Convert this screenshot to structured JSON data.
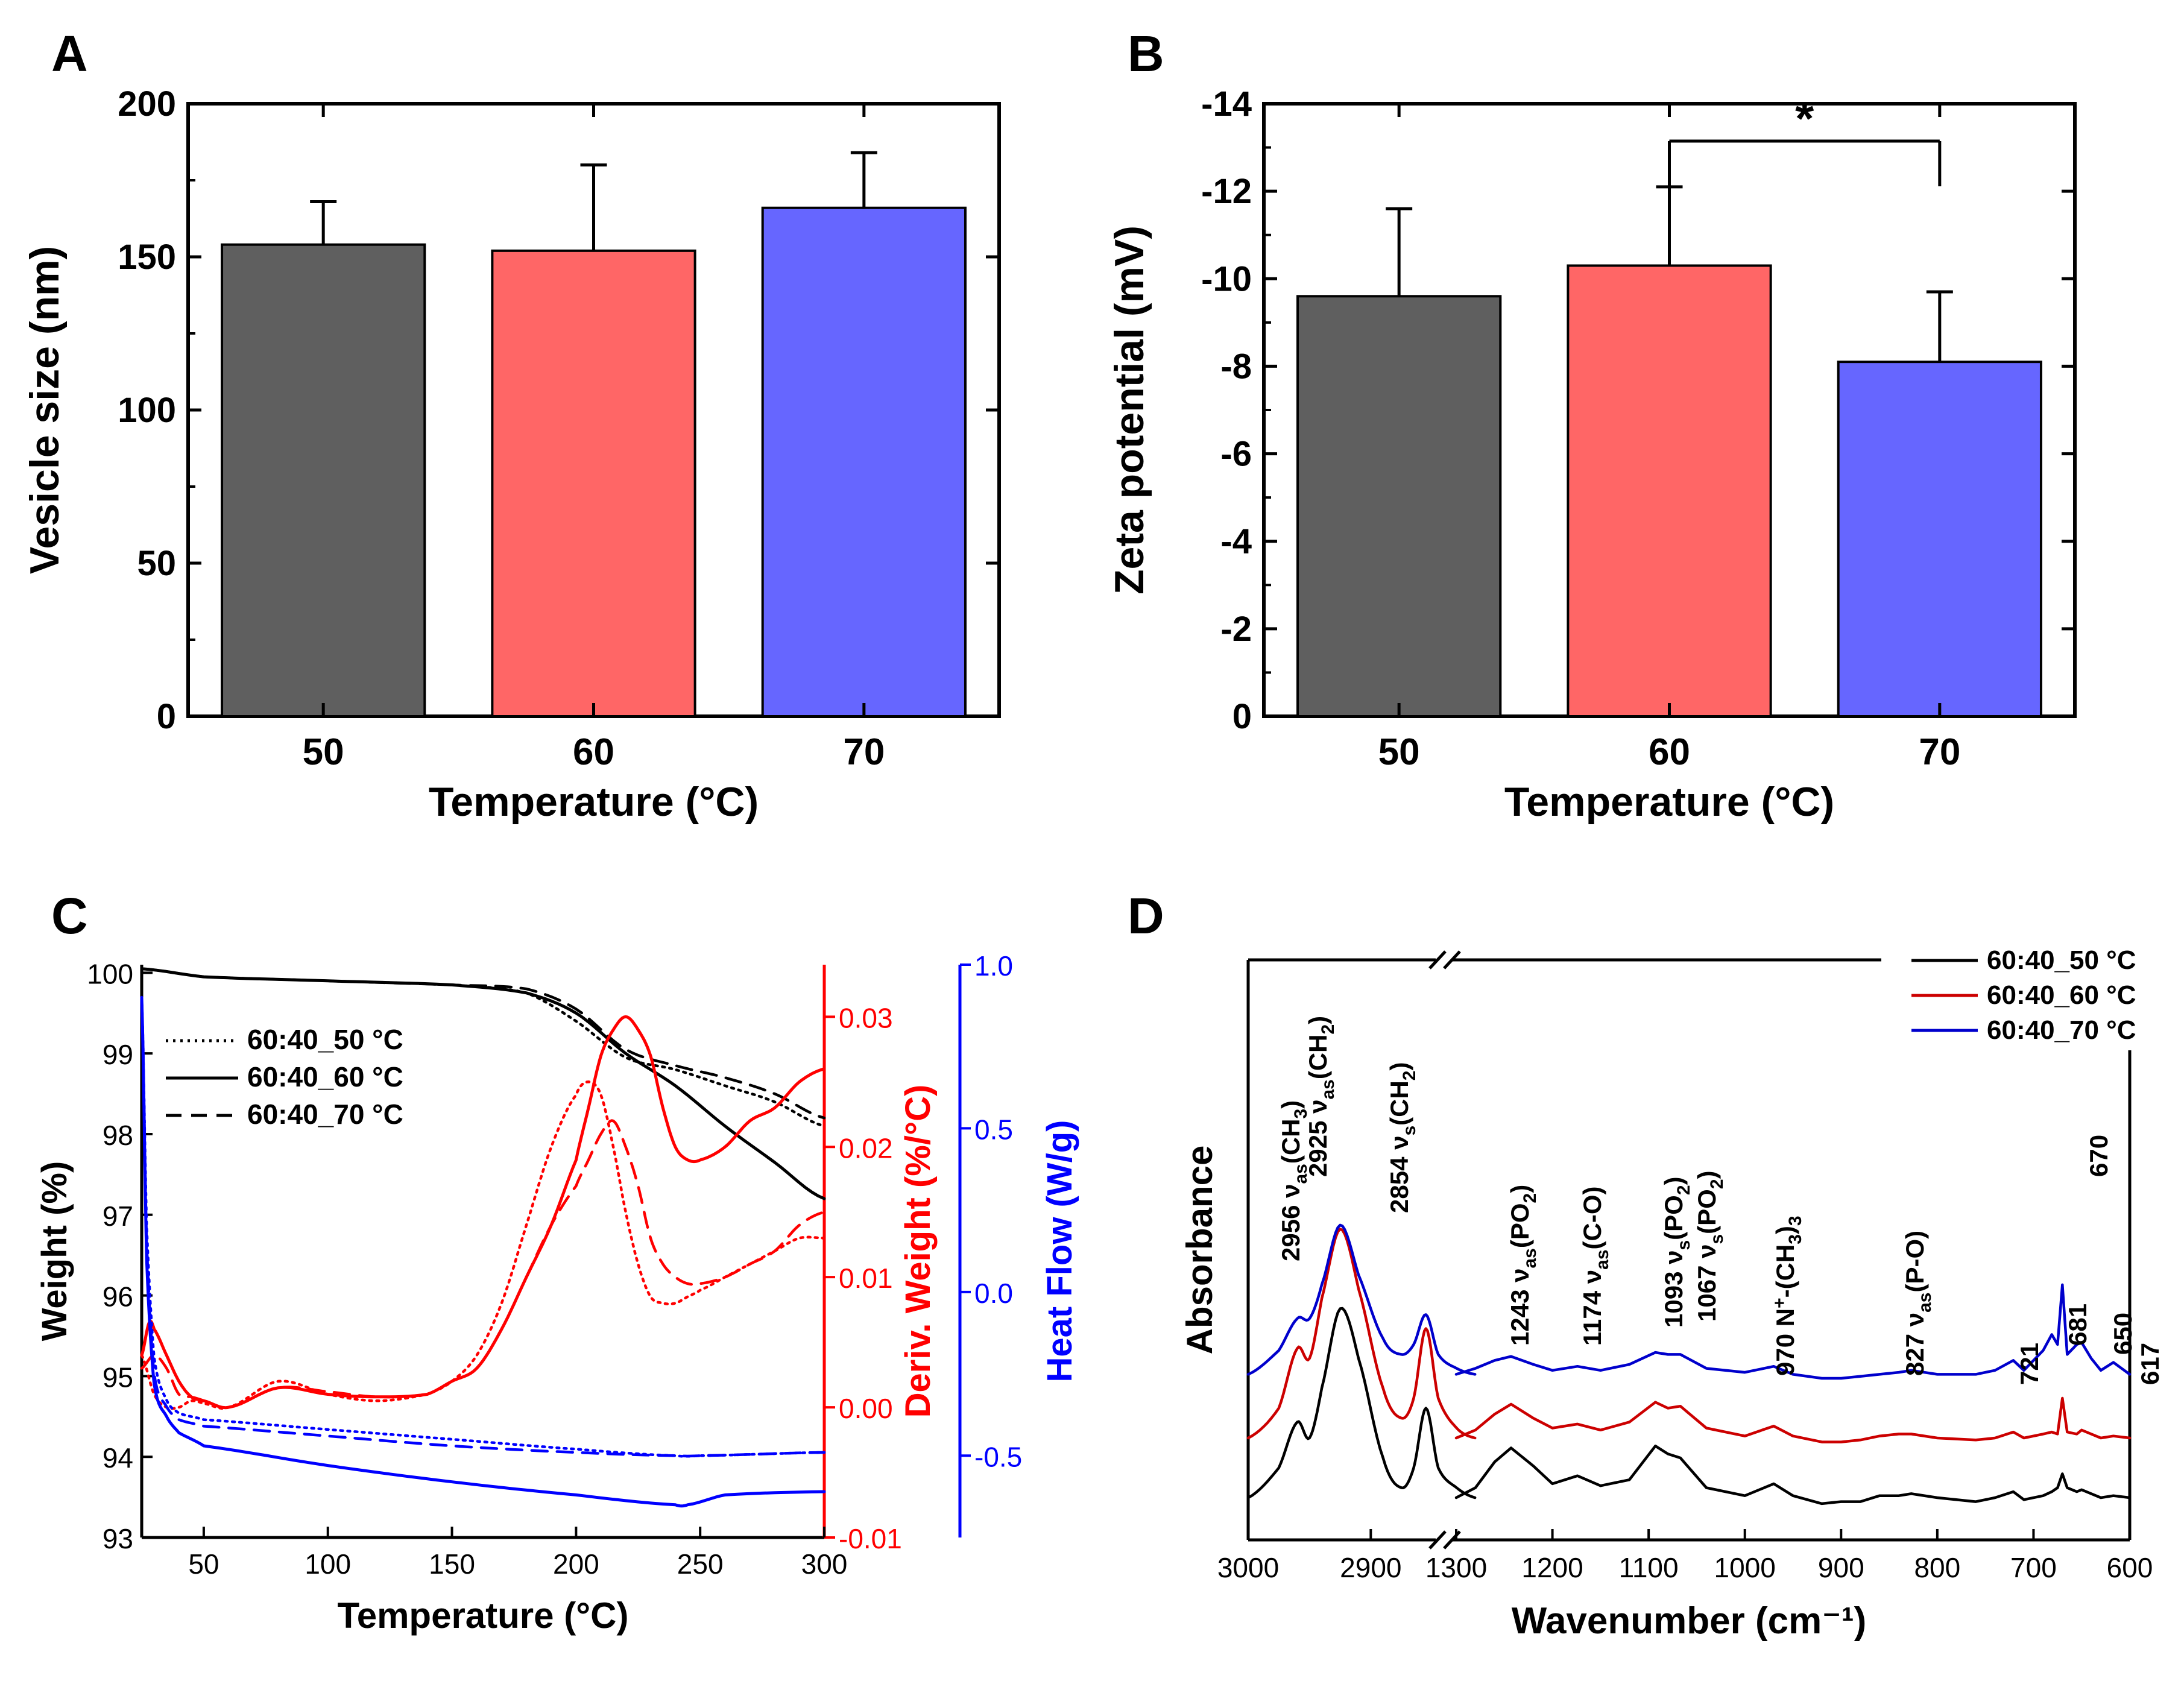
{
  "chart_data": [
    {
      "panel_label": "A",
      "type": "bar",
      "categories": [
        "50",
        "60",
        "70"
      ],
      "values": [
        154,
        152,
        166
      ],
      "errors": [
        14,
        28,
        18
      ],
      "colors": [
        "#5f5f5f",
        "#ff6666",
        "#6666ff"
      ],
      "xlabel": "Temperature (°C)",
      "ylabel": "Vesicle size (nm)",
      "ylim": [
        0,
        200
      ],
      "yticks": [
        "0",
        "50",
        "100",
        "150",
        "200"
      ]
    },
    {
      "panel_label": "B",
      "type": "bar",
      "categories": [
        "50",
        "60",
        "70"
      ],
      "values": [
        -9.6,
        -10.3,
        -8.1
      ],
      "errors": [
        2.0,
        1.8,
        1.6
      ],
      "colors": [
        "#5f5f5f",
        "#ff6666",
        "#6666ff"
      ],
      "xlabel": "Temperature (°C)",
      "ylabel": "Zeta potential (mV)",
      "ylim": [
        0,
        -14
      ],
      "yticks": [
        "0",
        "-2",
        "-4",
        "-6",
        "-8",
        "-10",
        "-12",
        "-14"
      ],
      "significance": {
        "between": [
          "60",
          "70"
        ],
        "label": "*"
      }
    },
    {
      "panel_label": "C",
      "type": "line",
      "xlabel": "Temperature (°C)",
      "xlim": [
        25,
        300
      ],
      "xticks": [
        "50",
        "100",
        "150",
        "200",
        "250",
        "300"
      ],
      "axes": {
        "left": {
          "label": "Weight (%)",
          "range": [
            93,
            100.1
          ],
          "ticks": [
            "93",
            "94",
            "95",
            "96",
            "97",
            "98",
            "99",
            "100"
          ],
          "color": "#000000"
        },
        "right1": {
          "label": "Deriv. Weight (%/°C)",
          "range": [
            -0.01,
            0.034
          ],
          "ticks": [
            "-0.01",
            "0.00",
            "0.01",
            "0.02",
            "0.03"
          ],
          "color": "#ff0000"
        },
        "right2": {
          "label": "Heat Flow (W/g)",
          "range": [
            -0.75,
            1.0
          ],
          "ticks": [
            "-0.5",
            "0.0",
            "0.5",
            "1.0"
          ],
          "color": "#0000ff"
        }
      },
      "legend": [
        "60:40_50 °C",
        "60:40_60 °C",
        "60:40_70 °C"
      ],
      "series": [
        {
          "name": "60:40_50 °C",
          "axis": "left",
          "style": "dotted",
          "color": "#000000",
          "x": [
            25,
            50,
            100,
            150,
            180,
            200,
            220,
            240,
            260,
            280,
            300
          ],
          "y": [
            100.05,
            99.95,
            99.9,
            99.85,
            99.75,
            99.4,
            98.95,
            98.8,
            98.6,
            98.4,
            98.1
          ]
        },
        {
          "name": "60:40_60 °C",
          "axis": "left",
          "style": "solid",
          "color": "#000000",
          "x": [
            25,
            50,
            100,
            150,
            180,
            200,
            220,
            240,
            260,
            280,
            300
          ],
          "y": [
            100.05,
            99.95,
            99.9,
            99.85,
            99.75,
            99.5,
            99.0,
            98.6,
            98.1,
            97.65,
            97.2
          ]
        },
        {
          "name": "60:40_70 °C",
          "axis": "left",
          "style": "dashed",
          "color": "#000000",
          "x": [
            25,
            50,
            100,
            150,
            180,
            200,
            220,
            240,
            260,
            280,
            300
          ],
          "y": [
            100.05,
            99.95,
            99.9,
            99.85,
            99.8,
            99.55,
            99.05,
            98.85,
            98.7,
            98.5,
            98.2
          ]
        },
        {
          "name": "60:40_50 °C",
          "axis": "right1",
          "style": "dotted",
          "color": "#ff0000",
          "x": [
            25,
            30,
            35,
            40,
            45,
            50,
            60,
            80,
            100,
            120,
            140,
            150,
            160,
            170,
            180,
            190,
            200,
            205,
            210,
            215,
            220,
            225,
            230,
            235,
            240,
            245,
            250,
            260,
            270,
            280,
            290,
            300
          ],
          "y": [
            0.004,
            0.001,
            0.0,
            0.0,
            0.0005,
            0.0003,
            0.0,
            0.002,
            0.001,
            0.0005,
            0.001,
            0.002,
            0.004,
            0.008,
            0.014,
            0.02,
            0.024,
            0.025,
            0.024,
            0.02,
            0.015,
            0.011,
            0.0085,
            0.008,
            0.008,
            0.0085,
            0.009,
            0.01,
            0.011,
            0.012,
            0.013,
            0.013
          ]
        },
        {
          "name": "60:40_60 °C",
          "axis": "right1",
          "style": "solid",
          "color": "#ff0000",
          "x": [
            25,
            28,
            30,
            35,
            40,
            45,
            50,
            60,
            80,
            100,
            120,
            140,
            150,
            160,
            170,
            180,
            190,
            200,
            205,
            210,
            215,
            220,
            225,
            230,
            235,
            240,
            245,
            250,
            260,
            270,
            280,
            290,
            300
          ],
          "y": [
            0.004,
            0.0065,
            0.006,
            0.004,
            0.002,
            0.0008,
            0.0005,
            0.0,
            0.0015,
            0.001,
            0.0008,
            0.001,
            0.002,
            0.003,
            0.006,
            0.01,
            0.014,
            0.019,
            0.023,
            0.027,
            0.029,
            0.03,
            0.029,
            0.027,
            0.023,
            0.02,
            0.019,
            0.019,
            0.02,
            0.022,
            0.023,
            0.025,
            0.026
          ]
        },
        {
          "name": "60:40_70 °C",
          "axis": "right1",
          "style": "dashed",
          "color": "#ff0000",
          "x": [
            25,
            30,
            35,
            40,
            45,
            50,
            60,
            80,
            100,
            120,
            140,
            150,
            160,
            170,
            180,
            190,
            200,
            205,
            210,
            215,
            220,
            225,
            230,
            235,
            240,
            245,
            250,
            260,
            270,
            280,
            290,
            300
          ],
          "y": [
            0.003,
            0.004,
            0.003,
            0.001,
            0.0008,
            0.0005,
            0.0,
            0.0015,
            0.0012,
            0.0008,
            0.001,
            0.002,
            0.003,
            0.006,
            0.01,
            0.014,
            0.017,
            0.019,
            0.021,
            0.022,
            0.02,
            0.017,
            0.013,
            0.011,
            0.01,
            0.0095,
            0.0095,
            0.01,
            0.011,
            0.012,
            0.014,
            0.015
          ]
        },
        {
          "name": "60:40_50 °C",
          "axis": "right2",
          "style": "dotted",
          "color": "#0000ff",
          "x": [
            25,
            27,
            30,
            35,
            40,
            50,
            100,
            150,
            200,
            240,
            250,
            300
          ],
          "y": [
            0.9,
            0.2,
            -0.2,
            -0.33,
            -0.37,
            -0.39,
            -0.42,
            -0.45,
            -0.48,
            -0.5,
            -0.5,
            -0.49
          ]
        },
        {
          "name": "60:40_60 °C",
          "axis": "right2",
          "style": "solid",
          "color": "#0000ff",
          "x": [
            25,
            27,
            30,
            35,
            40,
            50,
            100,
            150,
            200,
            240,
            245,
            260,
            300
          ],
          "y": [
            0.9,
            0.1,
            -0.28,
            -0.38,
            -0.43,
            -0.47,
            -0.53,
            -0.58,
            -0.62,
            -0.65,
            -0.65,
            -0.62,
            -0.61
          ]
        },
        {
          "name": "60:40_70 °C",
          "axis": "right2",
          "style": "dashed",
          "color": "#0000ff",
          "x": [
            25,
            27,
            30,
            35,
            40,
            50,
            100,
            150,
            200,
            240,
            250,
            300
          ],
          "y": [
            0.9,
            0.15,
            -0.25,
            -0.35,
            -0.39,
            -0.41,
            -0.44,
            -0.47,
            -0.49,
            -0.5,
            -0.5,
            -0.49
          ]
        }
      ]
    },
    {
      "panel_label": "D",
      "type": "line",
      "xlabel": "Wavenumber (cm⁻¹)",
      "ylabel": "Absorbance",
      "x_break": {
        "left_range": [
          3000,
          2850
        ],
        "right_range": [
          1300,
          600
        ]
      },
      "xticks": [
        "3000",
        "2900",
        "1300",
        "1200",
        "1100",
        "1000",
        "900",
        "800",
        "700",
        "600"
      ],
      "legend": [
        "60:40_50 °C",
        "60:40_60 °C",
        "60:40_70 °C"
      ],
      "series": [
        {
          "name": "60:40_50 °C",
          "color": "#000000",
          "offset": 0,
          "x_high": [
            3000,
            2975,
            2960,
            2950,
            2940,
            2925,
            2910,
            2890,
            2875,
            2865,
            2855,
            2845,
            2830,
            2815
          ],
          "y_high": [
            0.0,
            0.15,
            0.38,
            0.3,
            0.55,
            0.95,
            0.7,
            0.2,
            0.05,
            0.15,
            0.45,
            0.15,
            0.05,
            0.0
          ],
          "x_low": [
            1300,
            1280,
            1260,
            1243,
            1220,
            1200,
            1174,
            1150,
            1120,
            1093,
            1080,
            1067,
            1040,
            1000,
            970,
            950,
            920,
            900,
            880,
            860,
            840,
            827,
            800,
            760,
            740,
            721,
            710,
            690,
            681,
            675,
            670,
            665,
            655,
            650,
            640,
            630,
            617,
            600
          ],
          "y_low": [
            0.0,
            0.05,
            0.18,
            0.25,
            0.16,
            0.07,
            0.11,
            0.06,
            0.09,
            0.26,
            0.22,
            0.2,
            0.05,
            0.01,
            0.07,
            0.01,
            -0.03,
            -0.02,
            -0.02,
            0.01,
            0.01,
            0.02,
            0.0,
            -0.02,
            0.0,
            0.03,
            -0.01,
            0.01,
            0.03,
            0.05,
            0.12,
            0.05,
            0.03,
            0.04,
            0.02,
            0.0,
            0.01,
            0.0
          ]
        },
        {
          "name": "60:40_60 °C",
          "color": "#cc0000",
          "offset": 0.3,
          "x_high": [
            3000,
            2975,
            2960,
            2950,
            2940,
            2925,
            2910,
            2890,
            2875,
            2865,
            2855,
            2845,
            2830,
            2815
          ],
          "y_high": [
            0.0,
            0.15,
            0.45,
            0.4,
            0.7,
            1.05,
            0.75,
            0.25,
            0.1,
            0.2,
            0.55,
            0.2,
            0.05,
            0.0
          ],
          "x_low": [
            1300,
            1280,
            1260,
            1243,
            1220,
            1200,
            1174,
            1150,
            1120,
            1093,
            1080,
            1067,
            1040,
            1000,
            970,
            950,
            920,
            900,
            880,
            860,
            840,
            827,
            800,
            760,
            740,
            721,
            710,
            690,
            681,
            675,
            670,
            665,
            655,
            650,
            640,
            630,
            617,
            600
          ],
          "y_low": [
            0.0,
            0.04,
            0.12,
            0.17,
            0.1,
            0.05,
            0.07,
            0.04,
            0.08,
            0.18,
            0.15,
            0.16,
            0.05,
            0.01,
            0.06,
            0.01,
            -0.02,
            -0.02,
            -0.01,
            0.01,
            0.02,
            0.02,
            0.0,
            -0.01,
            0.0,
            0.03,
            0.0,
            0.02,
            0.03,
            0.02,
            0.2,
            0.03,
            0.02,
            0.04,
            0.02,
            0.0,
            0.01,
            0.0
          ]
        },
        {
          "name": "60:40_70 °C",
          "color": "#0000cc",
          "offset": 0.62,
          "x_high": [
            3000,
            2975,
            2960,
            2950,
            2940,
            2925,
            2910,
            2890,
            2875,
            2865,
            2855,
            2845,
            2830,
            2815
          ],
          "y_high": [
            0.0,
            0.12,
            0.28,
            0.28,
            0.45,
            0.75,
            0.5,
            0.18,
            0.1,
            0.15,
            0.3,
            0.1,
            0.03,
            0.0
          ],
          "x_low": [
            1300,
            1280,
            1260,
            1243,
            1220,
            1200,
            1174,
            1150,
            1120,
            1093,
            1080,
            1067,
            1040,
            1000,
            970,
            950,
            920,
            900,
            880,
            860,
            840,
            827,
            800,
            760,
            740,
            721,
            710,
            690,
            681,
            675,
            670,
            665,
            655,
            650,
            640,
            630,
            617,
            600
          ],
          "y_low": [
            0.0,
            0.03,
            0.07,
            0.09,
            0.05,
            0.02,
            0.04,
            0.02,
            0.05,
            0.11,
            0.1,
            0.1,
            0.03,
            0.01,
            0.04,
            0.0,
            -0.02,
            -0.02,
            -0.01,
            0.0,
            0.01,
            0.02,
            0.0,
            0.0,
            0.02,
            0.07,
            0.02,
            0.12,
            0.2,
            0.15,
            0.45,
            0.1,
            0.15,
            0.16,
            0.08,
            0.02,
            0.06,
            0.0
          ]
        }
      ],
      "annotations": [
        {
          "peak": "2956",
          "label": "2956",
          "assign": "ν",
          "sub": "as",
          "group": "(CH",
          "gsub": "3",
          "close": ")"
        },
        {
          "peak": "2925",
          "label": "2925",
          "assign": "ν",
          "sub": "as",
          "group": "(CH",
          "gsub": "2",
          "close": ")"
        },
        {
          "peak": "2854",
          "label": "2854",
          "assign": "ν",
          "sub": "s",
          "group": "(CH",
          "gsub": "2",
          "close": ")"
        },
        {
          "peak": "1243",
          "label": "1243",
          "assign": "ν",
          "sub": "as",
          "group": "(PO",
          "gsub": "2",
          "close": ")"
        },
        {
          "peak": "1174",
          "label": "1174",
          "assign": "ν",
          "sub": "as",
          "group": "(C-O)",
          "gsub": "",
          "close": ""
        },
        {
          "peak": "1093",
          "label": "1093",
          "assign": "ν",
          "sub": "s",
          "group": "(PO",
          "gsub": "2",
          "close": ")"
        },
        {
          "peak": "1067",
          "label": "1067",
          "assign": "ν",
          "sub": "s",
          "group": "(PO",
          "gsub": "2",
          "close": ")"
        },
        {
          "peak": "970",
          "label": "970",
          "assign": "N",
          "sub": "",
          "group": "-(CH",
          "gsub": "3",
          "close": ")",
          "sup": "+",
          "tail_sub": "3"
        },
        {
          "peak": "827",
          "label": "827",
          "assign": "ν",
          "sub": "as",
          "group": "(P-O)",
          "gsub": "",
          "close": ""
        },
        {
          "peak": "721",
          "label": "721"
        },
        {
          "peak": "681",
          "label": "681"
        },
        {
          "peak": "670",
          "label": "670"
        },
        {
          "peak": "650",
          "label": "650"
        },
        {
          "peak": "617",
          "label": "617"
        }
      ]
    }
  ]
}
